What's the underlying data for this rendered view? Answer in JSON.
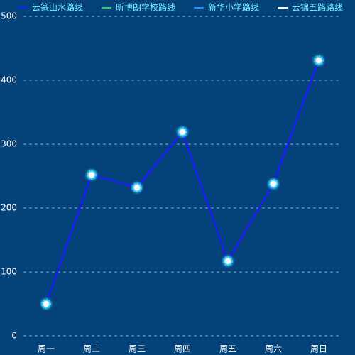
{
  "chart_data": {
    "type": "line",
    "categories": [
      "周一",
      "周二",
      "周三",
      "周四",
      "周五",
      "周六",
      "周日"
    ],
    "series": [
      {
        "name": "云篆山水路线",
        "color": "#1a1aff",
        "values": [
          50,
          252,
          232,
          319,
          117,
          238,
          431
        ]
      },
      {
        "name": "昕博朗学校路线",
        "color": "#22d36a",
        "values": [
          null,
          null,
          null,
          null,
          null,
          null,
          null
        ]
      },
      {
        "name": "新华小学路线",
        "color": "#1e90ff",
        "values": [
          null,
          null,
          null,
          null,
          null,
          null,
          null
        ]
      },
      {
        "name": "云锦五路路线",
        "color": "#ffffff",
        "values": [
          null,
          null,
          null,
          null,
          null,
          null,
          null
        ]
      }
    ],
    "ylim": [
      0,
      500
    ],
    "yticks": [
      0,
      100,
      200,
      300,
      400,
      500
    ],
    "grid": true
  }
}
